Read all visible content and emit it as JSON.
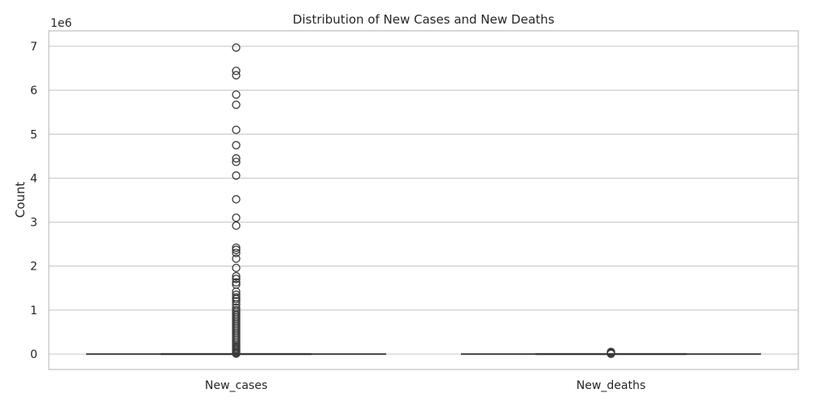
{
  "chart_data": {
    "type": "box",
    "title": "Distribution of New Cases and New Deaths",
    "xlabel": "",
    "ylabel": "Count",
    "y_offset_label": "1e6",
    "ylim": [
      -0.35,
      7.35
    ],
    "yticks": [
      0,
      1,
      2,
      3,
      4,
      5,
      6,
      7
    ],
    "grid": true,
    "categories": [
      "New_cases",
      "New_deaths"
    ],
    "boxes": [
      {
        "category": "New_cases",
        "q1": 0.0,
        "median": 0.0,
        "q3": 0.0,
        "whisker_low": 0.0,
        "whisker_high": 0.0,
        "outliers": [
          6.97,
          6.44,
          6.34,
          5.9,
          5.67,
          5.1,
          4.75,
          4.45,
          4.37,
          4.06,
          3.52,
          3.1,
          2.92,
          2.42,
          2.37,
          2.3,
          2.17,
          1.96,
          1.77,
          1.71,
          1.63,
          1.58,
          1.42,
          1.35,
          1.29,
          1.25,
          1.2,
          1.13,
          1.05,
          1.0,
          0.96,
          0.92,
          0.88,
          0.84,
          0.8,
          0.76,
          0.72,
          0.68,
          0.64,
          0.6,
          0.56,
          0.52,
          0.48,
          0.44,
          0.4,
          0.36,
          0.32,
          0.28,
          0.24,
          0.2,
          0.17,
          0.14,
          0.11,
          0.08,
          0.05,
          0.03,
          0.01
        ]
      },
      {
        "category": "New_deaths",
        "q1": 0.0,
        "median": 0.0,
        "q3": 0.0,
        "whisker_low": 0.0,
        "whisker_high": 0.0,
        "outliers": [
          0.05,
          0.03,
          0.02,
          0.01,
          0.005
        ]
      }
    ]
  }
}
